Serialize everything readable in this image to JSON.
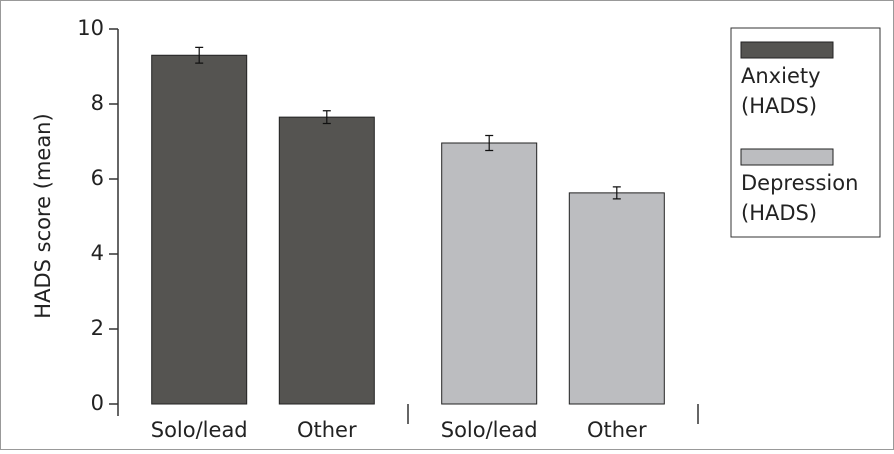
{
  "chart_data": {
    "type": "bar",
    "y_label": "HADS score (mean)",
    "categories": [
      "Solo/lead",
      "Other",
      "Solo/lead",
      "Other"
    ],
    "series": [
      {
        "name": "Anxiety (HADS)",
        "color": "#555451",
        "values": [
          9.3,
          7.65,
          null,
          null
        ],
        "errors": [
          0.21,
          0.17,
          null,
          null
        ]
      },
      {
        "name": "Depression (HADS)",
        "color": "#bcbdc0",
        "values": [
          null,
          null,
          6.96,
          5.63
        ],
        "errors": [
          null,
          null,
          0.2,
          0.16
        ]
      }
    ],
    "ylim": [
      0,
      10
    ],
    "yticks": [
      0,
      2,
      4,
      6,
      8,
      10
    ]
  }
}
